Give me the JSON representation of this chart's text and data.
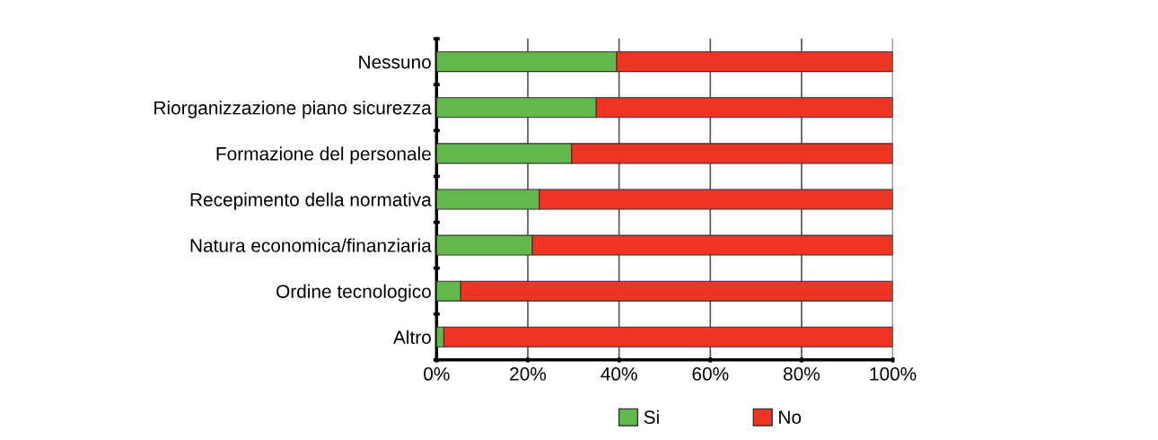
{
  "chart_data": {
    "type": "bar",
    "orientation": "horizontal",
    "stacked": true,
    "categories": [
      "Nessuno",
      "Riorganizzazione piano sicurezza",
      "Formazione del personale",
      "Recepimento della normativa",
      "Natura economica/finanziaria",
      "Ordine tecnologico",
      "Altro"
    ],
    "series": [
      {
        "name": "Si",
        "color": "#62b84a",
        "values": [
          39.5,
          35,
          29.6,
          22.5,
          21,
          5.3,
          1.6
        ]
      },
      {
        "name": "No",
        "color": "#ee3524",
        "values": [
          60.5,
          65,
          70.4,
          77.5,
          79,
          94.7,
          98.4
        ]
      }
    ],
    "xlim": [
      0,
      100
    ],
    "xticks": [
      {
        "value": 0,
        "label": "0%"
      },
      {
        "value": 20,
        "label": "20%"
      },
      {
        "value": 40,
        "label": "40%"
      },
      {
        "value": 60,
        "label": "60%"
      },
      {
        "value": 80,
        "label": "80%"
      },
      {
        "value": 100,
        "label": "100%"
      }
    ],
    "grid": "x",
    "legend": "bottom"
  }
}
